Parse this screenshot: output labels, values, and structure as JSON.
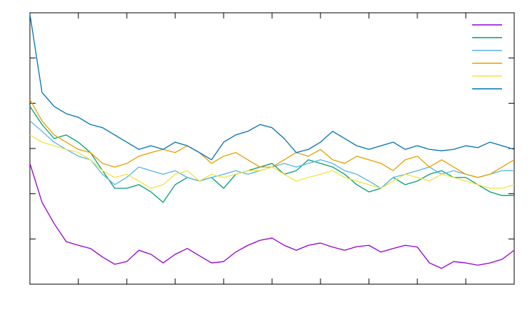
{
  "chart_data": {
    "type": "line",
    "x": [
      0,
      0.25,
      0.5,
      0.75,
      1,
      1.25,
      1.5,
      1.75,
      2,
      2.25,
      2.5,
      2.75,
      3,
      3.25,
      3.5,
      3.75,
      4,
      4.25,
      4.5,
      4.75,
      5,
      5.25,
      5.5,
      5.75,
      6,
      6.25,
      6.5,
      6.75,
      7,
      7.25,
      7.5,
      7.75,
      8,
      8.25,
      8.5,
      8.75,
      9,
      9.25,
      9.5,
      9.75,
      10
    ],
    "xlim": [
      0,
      10
    ],
    "xticks": [
      0,
      1,
      2,
      3,
      4,
      5,
      6,
      7,
      8,
      9,
      10
    ],
    "ylim": [
      0,
      6
    ],
    "yticks": [
      0,
      1,
      2,
      3,
      4,
      5,
      6
    ],
    "legend": "top-right",
    "series": [
      {
        "color": "#9400d3",
        "values": [
          2.67,
          1.81,
          1.34,
          0.94,
          0.86,
          0.79,
          0.6,
          0.44,
          0.5,
          0.75,
          0.66,
          0.47,
          0.66,
          0.79,
          0.63,
          0.47,
          0.5,
          0.71,
          0.86,
          0.97,
          1.02,
          0.86,
          0.75,
          0.86,
          0.91,
          0.82,
          0.75,
          0.83,
          0.86,
          0.71,
          0.79,
          0.86,
          0.82,
          0.47,
          0.35,
          0.5,
          0.47,
          0.42,
          0.47,
          0.55,
          0.75
        ]
      },
      {
        "color": "#009e73",
        "values": [
          3.93,
          3.53,
          3.22,
          3.3,
          3.14,
          2.91,
          2.51,
          2.12,
          2.12,
          2.2,
          2.04,
          1.81,
          2.2,
          2.36,
          2.28,
          2.36,
          2.12,
          2.43,
          2.51,
          2.59,
          2.67,
          2.43,
          2.51,
          2.75,
          2.67,
          2.59,
          2.43,
          2.2,
          2.04,
          2.12,
          2.36,
          2.2,
          2.28,
          2.43,
          2.51,
          2.36,
          2.36,
          2.2,
          2.04,
          1.96,
          1.96
        ]
      },
      {
        "color": "#56b4e9",
        "values": [
          3.61,
          3.38,
          3.14,
          2.98,
          2.83,
          2.75,
          2.43,
          2.2,
          2.36,
          2.59,
          2.51,
          2.43,
          2.51,
          2.36,
          2.28,
          2.36,
          2.43,
          2.51,
          2.43,
          2.51,
          2.59,
          2.67,
          2.59,
          2.67,
          2.75,
          2.67,
          2.51,
          2.43,
          2.28,
          2.12,
          2.36,
          2.43,
          2.51,
          2.59,
          2.43,
          2.51,
          2.43,
          2.36,
          2.43,
          2.51,
          2.51
        ]
      },
      {
        "color": "#e69f00",
        "values": [
          4.08,
          3.61,
          3.3,
          3.14,
          2.98,
          2.91,
          2.67,
          2.59,
          2.67,
          2.83,
          2.91,
          2.98,
          2.91,
          3.06,
          2.91,
          2.67,
          2.83,
          2.91,
          2.75,
          2.59,
          2.59,
          2.75,
          2.91,
          2.83,
          2.98,
          2.75,
          2.67,
          2.83,
          2.75,
          2.67,
          2.51,
          2.75,
          2.83,
          2.59,
          2.75,
          2.59,
          2.43,
          2.36,
          2.43,
          2.59,
          2.75
        ]
      },
      {
        "color": "#f0e442",
        "values": [
          3.3,
          3.14,
          3.06,
          2.98,
          2.91,
          2.75,
          2.51,
          2.36,
          2.43,
          2.28,
          2.12,
          2.2,
          2.43,
          2.51,
          2.28,
          2.43,
          2.36,
          2.43,
          2.51,
          2.51,
          2.59,
          2.43,
          2.28,
          2.36,
          2.43,
          2.51,
          2.36,
          2.28,
          2.2,
          2.12,
          2.28,
          2.43,
          2.36,
          2.28,
          2.43,
          2.36,
          2.28,
          2.2,
          2.12,
          2.12,
          2.2
        ]
      },
      {
        "color": "#0072b2",
        "values": [
          5.97,
          4.24,
          3.93,
          3.77,
          3.69,
          3.53,
          3.46,
          3.3,
          3.14,
          2.98,
          3.06,
          2.98,
          3.14,
          3.06,
          2.91,
          2.75,
          3.14,
          3.3,
          3.38,
          3.53,
          3.46,
          3.22,
          2.91,
          2.98,
          3.14,
          3.38,
          3.22,
          3.06,
          2.98,
          3.06,
          3.14,
          2.98,
          3.06,
          2.98,
          2.95,
          2.98,
          3.06,
          3.02,
          3.14,
          3.06,
          2.98
        ]
      }
    ]
  }
}
